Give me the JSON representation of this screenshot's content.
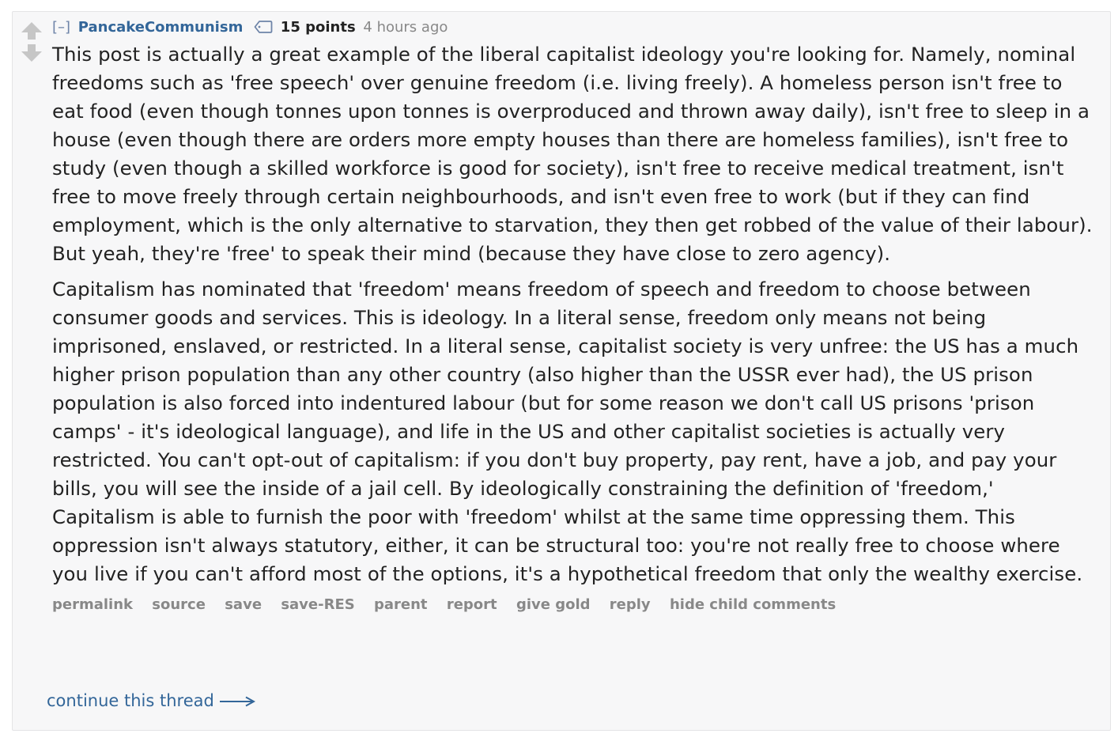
{
  "comment": {
    "collapse_toggle": "[–]",
    "author": "PancakeCommunism",
    "score": "15 points",
    "time": "4 hours ago",
    "paragraphs": [
      "This post is actually a great example of the liberal capitalist ideology you're looking for. Namely, nominal freedoms such as 'free speech' over genuine freedom (i.e. living freely). A homeless person isn't free to eat food (even though tonnes upon tonnes is overproduced and thrown away daily), isn't free to sleep in a house (even though there are orders more empty houses than there are homeless families), isn't free to study (even though a skilled workforce is good for society), isn't free to receive medical treatment, isn't free to move freely through certain neighbourhoods, and isn't even free to work (but if they can find employment, which is the only alternative to starvation, they then get robbed of the value of their labour). But yeah, they're 'free' to speak their mind (because they have close to zero agency).",
      "Capitalism has nominated that 'freedom' means freedom of speech and freedom to choose between consumer goods and services. This is ideology. In a literal sense, freedom only means not being imprisoned, enslaved, or restricted. In a literal sense, capitalist society is very unfree: the US has a much higher prison population than any other country (also higher than the USSR ever had), the US prison population is also forced into indentured labour (but for some reason we don't call US prisons 'prison camps' - it's ideological language), and life in the US and other capitalist societies is actually very restricted. You can't opt-out of capitalism: if you don't buy property, pay rent, have a job, and pay your bills, you will see the inside of a jail cell. By ideologically constraining the definition of 'freedom,' Capitalism is able to furnish the poor with 'freedom' whilst at the same time oppressing them. This oppression isn't always statutory, either, it can be structural too: you're not really free to choose where you live if you can't afford most of the options, it's a hypothetical freedom that only the wealthy exercise."
    ],
    "buttons": {
      "permalink": "permalink",
      "source": "source",
      "save": "save",
      "save_res": "save-RES",
      "parent": "parent",
      "report": "report",
      "give_gold": "give gold",
      "reply": "reply",
      "hide_child": "hide child comments"
    },
    "continue_thread": "continue this thread"
  },
  "icons": {
    "upvote": "upvote-arrow-icon",
    "downvote": "downvote-arrow-icon",
    "flair": "tag-icon",
    "continue": "right-arrow-icon"
  },
  "colors": {
    "author": "#336699",
    "meta_gray": "#888888",
    "body_text": "#222222",
    "background": "#f7f7f8",
    "arrow_gray": "#c6c6c6"
  }
}
